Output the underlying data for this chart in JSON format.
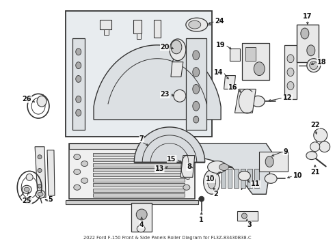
{
  "title": "2022 Ford F-150 Front & Side Panels Roller Diagram for FL3Z-83430B38-C",
  "bg_color": "#ffffff",
  "fig_width": 4.9,
  "fig_height": 3.6,
  "dpi": 100,
  "lc": "#333333",
  "tc": "#111111",
  "fs": 7.0,
  "panel_fc": "#e8ecef",
  "part_fc": "#e8e8e8",
  "tailgate_fc": "#f0f0f0"
}
